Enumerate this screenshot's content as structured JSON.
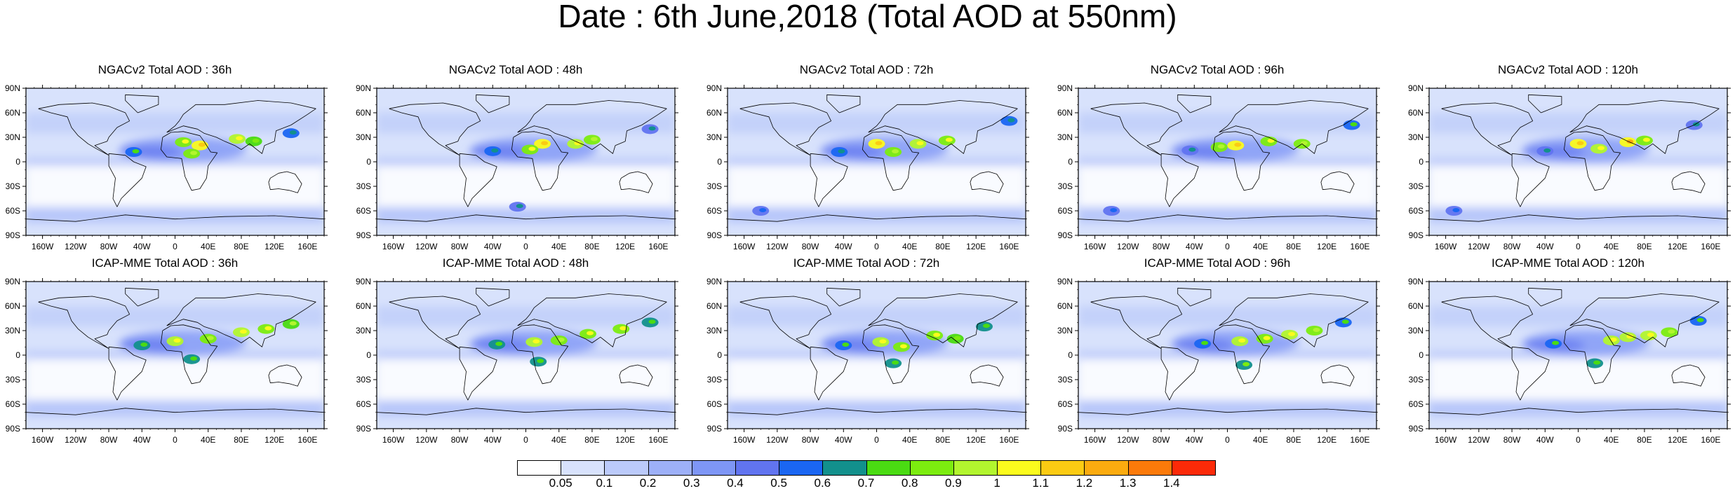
{
  "title": "Date : 6th June,2018 (Total AOD at 550nm)",
  "rows": [
    {
      "panels": [
        {
          "title": "NGACv2 Total AOD : 36h",
          "hotspots": [
            [
              -50,
              12,
              0.55
            ],
            [
              30,
              20,
              1.0
            ],
            [
              20,
              10,
              0.8
            ],
            [
              75,
              28,
              0.9
            ],
            [
              95,
              25,
              0.7
            ],
            [
              140,
              35,
              0.5
            ],
            [
              10,
              24,
              0.85
            ]
          ]
        },
        {
          "title": "NGACv2 Total AOD : 48h",
          "hotspots": [
            [
              -40,
              13,
              0.5
            ],
            [
              20,
              22,
              1.0
            ],
            [
              5,
              15,
              0.85
            ],
            [
              60,
              22,
              0.9
            ],
            [
              80,
              27,
              0.8
            ],
            [
              -10,
              -55,
              0.45
            ],
            [
              150,
              40,
              0.45
            ]
          ]
        },
        {
          "title": "NGACv2 Total AOD : 72h",
          "hotspots": [
            [
              -45,
              12,
              0.5
            ],
            [
              0,
              22,
              1.0
            ],
            [
              20,
              12,
              0.8
            ],
            [
              50,
              22,
              0.9
            ],
            [
              85,
              26,
              0.85
            ],
            [
              160,
              50,
              0.5
            ],
            [
              -140,
              -60,
              0.4
            ]
          ]
        },
        {
          "title": "NGACv2 Total AOD : 96h",
          "hotspots": [
            [
              -45,
              14,
              0.45
            ],
            [
              10,
              20,
              1.0
            ],
            [
              -10,
              18,
              0.8
            ],
            [
              50,
              25,
              0.85
            ],
            [
              90,
              22,
              0.8
            ],
            [
              150,
              45,
              0.55
            ],
            [
              -140,
              -60,
              0.4
            ]
          ]
        },
        {
          "title": "NGACv2 Total AOD : 120h",
          "hotspots": [
            [
              -40,
              13,
              0.45
            ],
            [
              0,
              22,
              1.0
            ],
            [
              25,
              16,
              0.9
            ],
            [
              60,
              24,
              1.05
            ],
            [
              80,
              26,
              0.85
            ],
            [
              -150,
              -60,
              0.4
            ],
            [
              140,
              45,
              0.45
            ]
          ]
        }
      ]
    },
    {
      "panels": [
        {
          "title": "ICAP-MME Total AOD : 36h",
          "hotspots": [
            [
              -40,
              12,
              0.6
            ],
            [
              0,
              17,
              0.9
            ],
            [
              40,
              20,
              0.8
            ],
            [
              80,
              28,
              0.9
            ],
            [
              110,
              32,
              0.85
            ],
            [
              140,
              38,
              0.75
            ],
            [
              20,
              -5,
              0.6
            ]
          ]
        },
        {
          "title": "ICAP-MME Total AOD : 48h",
          "hotspots": [
            [
              -35,
              13,
              0.6
            ],
            [
              10,
              16,
              0.95
            ],
            [
              40,
              18,
              0.8
            ],
            [
              75,
              26,
              0.85
            ],
            [
              115,
              32,
              0.85
            ],
            [
              150,
              40,
              0.6
            ],
            [
              15,
              -8,
              0.6
            ]
          ]
        },
        {
          "title": "ICAP-MME Total AOD : 72h",
          "hotspots": [
            [
              -40,
              12,
              0.55
            ],
            [
              5,
              16,
              0.9
            ],
            [
              30,
              10,
              0.85
            ],
            [
              70,
              24,
              0.85
            ],
            [
              95,
              20,
              0.7
            ],
            [
              130,
              35,
              0.6
            ],
            [
              20,
              -10,
              0.6
            ]
          ]
        },
        {
          "title": "ICAP-MME Total AOD : 96h",
          "hotspots": [
            [
              -30,
              14,
              0.55
            ],
            [
              15,
              17,
              0.95
            ],
            [
              45,
              20,
              0.85
            ],
            [
              75,
              25,
              0.9
            ],
            [
              105,
              30,
              0.8
            ],
            [
              20,
              -12,
              0.65
            ],
            [
              140,
              40,
              0.55
            ]
          ]
        },
        {
          "title": "ICAP-MME Total AOD : 120h",
          "hotspots": [
            [
              -30,
              14,
              0.55
            ],
            [
              40,
              18,
              0.9
            ],
            [
              60,
              22,
              0.95
            ],
            [
              85,
              24,
              0.9
            ],
            [
              110,
              28,
              0.8
            ],
            [
              20,
              -10,
              0.6
            ],
            [
              145,
              42,
              0.55
            ]
          ]
        }
      ]
    }
  ],
  "lat_ticks": [
    "90N",
    "60N",
    "30N",
    "0",
    "30S",
    "60S",
    "90S"
  ],
  "lon_ticks": [
    "160W",
    "120W",
    "80W",
    "40W",
    "0",
    "40E",
    "80E",
    "120E",
    "160E"
  ],
  "colorbar": {
    "colors": [
      "#ffffff",
      "#d8e2fc",
      "#bbcafa",
      "#9db0f8",
      "#7e96f6",
      "#6174f0",
      "#1a66f2",
      "#12908c",
      "#4adb12",
      "#7cec0f",
      "#b2f52e",
      "#fbfb1d",
      "#fbcb13",
      "#fbab0f",
      "#fb7a0a",
      "#fb2a08"
    ],
    "labels": [
      "0.05",
      "0.1",
      "0.2",
      "0.3",
      "0.4",
      "0.5",
      "0.6",
      "0.7",
      "0.8",
      "0.9",
      "1",
      "1.1",
      "1.2",
      "1.3",
      "1.4"
    ]
  }
}
